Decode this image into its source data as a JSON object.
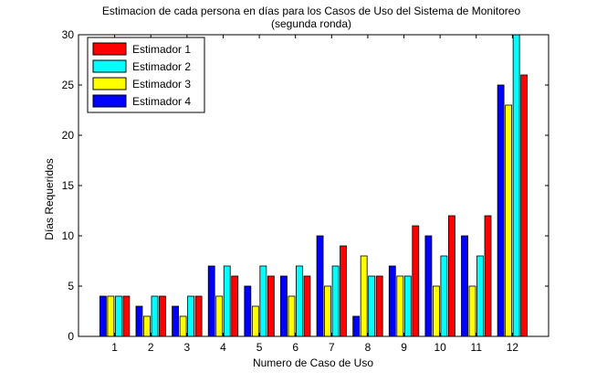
{
  "chart_data": {
    "type": "bar",
    "title": "Estimacion de cada persona en días para los Casos de Uso del Sistema de Monitoreo",
    "subtitle": "(segunda ronda)",
    "xlabel": "Numero de Caso de Uso",
    "ylabel": "Días Requeridos",
    "categories": [
      "1",
      "2",
      "3",
      "4",
      "5",
      "6",
      "7",
      "8",
      "9",
      "10",
      "11",
      "12"
    ],
    "ylim": [
      0,
      30
    ],
    "yticks": [
      0,
      5,
      10,
      15,
      20,
      25,
      30
    ],
    "grid": false,
    "legend_placement": "top-left",
    "series": [
      {
        "name": "Estimador 4",
        "color": "#0000ff",
        "values": [
          4,
          3,
          3,
          7,
          5,
          6,
          10,
          2,
          7,
          10,
          10,
          25
        ]
      },
      {
        "name": "Estimador 3",
        "color": "#ffff00",
        "values": [
          4,
          2,
          2,
          4,
          3,
          4,
          5,
          8,
          6,
          5,
          5,
          23
        ]
      },
      {
        "name": "Estimador 2",
        "color": "#00ffff",
        "values": [
          4,
          4,
          4,
          7,
          7,
          7,
          7,
          6,
          6,
          8,
          8,
          30
        ]
      },
      {
        "name": "Estimador 1",
        "color": "#ff0000",
        "values": [
          4,
          4,
          4,
          6,
          6,
          6,
          9,
          6,
          11,
          12,
          12,
          26
        ]
      }
    ],
    "legend_order": [
      "Estimador 1",
      "Estimador 2",
      "Estimador 3",
      "Estimador 4"
    ]
  }
}
